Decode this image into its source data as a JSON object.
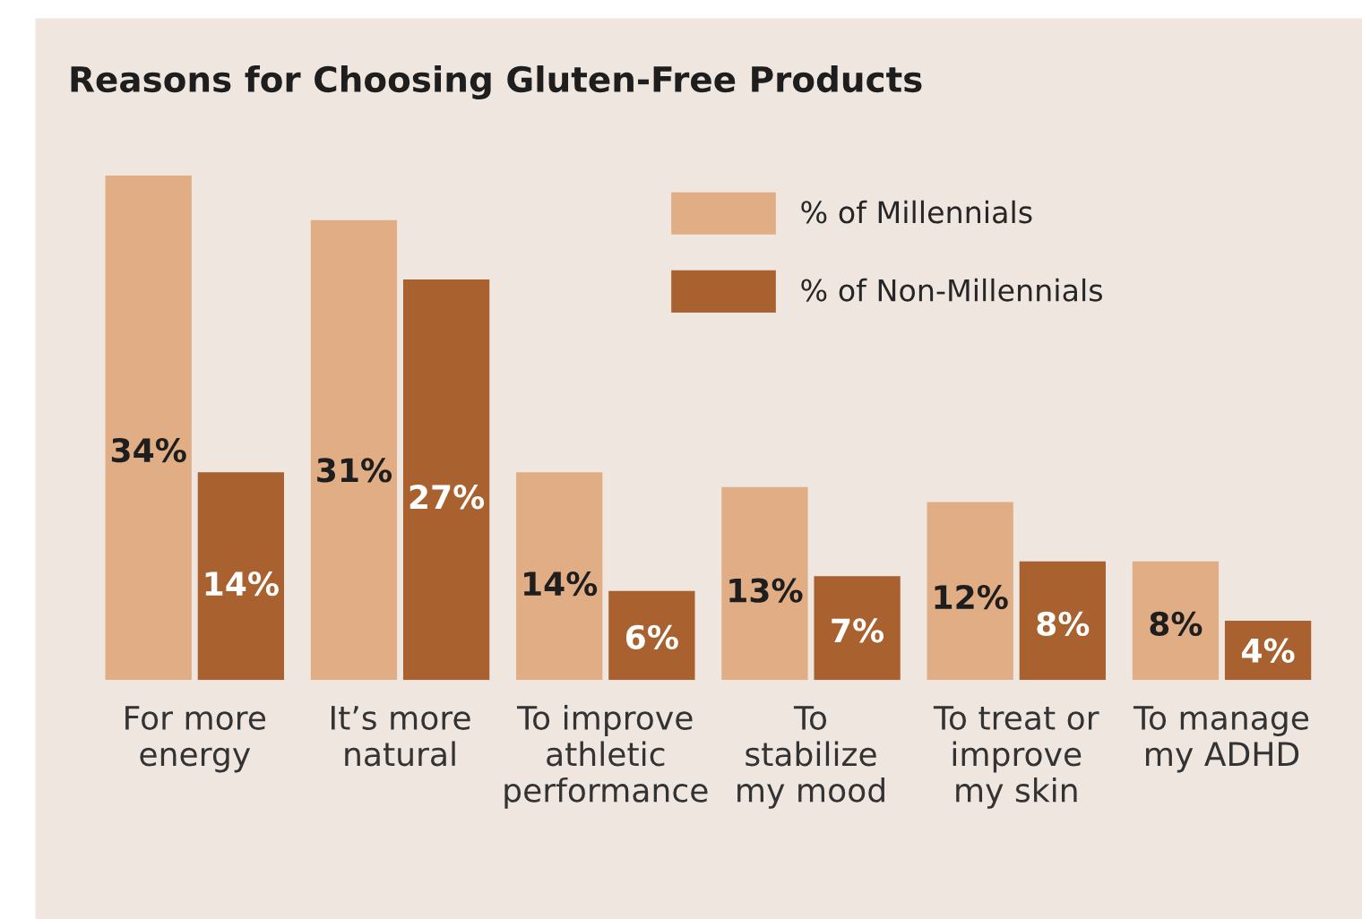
{
  "chart_data": {
    "type": "bar",
    "title": "Reasons for Choosing Gluten-Free Products",
    "categories": [
      "For more\nenergy",
      "It’s more\nnatural",
      "To improve\nathletic\nperformance",
      "To\nstabilize\nmy mood",
      "To treat or\nimprove\nmy skin",
      "To manage\nmy ADHD"
    ],
    "series": [
      {
        "name": "% of Millennials",
        "color": "#e0ad84",
        "values": [
          34,
          31,
          14,
          13,
          12,
          8
        ],
        "value_labels": [
          "34%",
          "31%",
          "14%",
          "13%",
          "12%",
          "8%"
        ]
      },
      {
        "name": "% of Non-Millennials",
        "color": "#a8612f",
        "values": [
          14,
          27,
          6,
          7,
          8,
          4
        ],
        "value_labels": [
          "14%",
          "27%",
          "6%",
          "7%",
          "8%",
          "4%"
        ]
      }
    ],
    "tick_labels": "x",
    "legend": "top right",
    "grid": false
  }
}
